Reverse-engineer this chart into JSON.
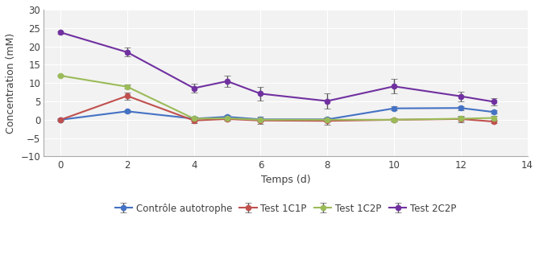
{
  "x": [
    0,
    2,
    4,
    5,
    6,
    8,
    10,
    12,
    13
  ],
  "controle_autotrophe": [
    0.0,
    2.3,
    0.3,
    0.8,
    0.1,
    0.1,
    3.1,
    3.2,
    2.1
  ],
  "controle_autotrophe_err": [
    0.2,
    0.4,
    0.5,
    0.4,
    0.3,
    0.5,
    0.5,
    0.5,
    0.4
  ],
  "test_1c1p": [
    0.0,
    6.5,
    -0.2,
    0.2,
    -0.2,
    -0.3,
    0.0,
    0.2,
    -0.5
  ],
  "test_1c1p_err": [
    0.3,
    1.0,
    0.8,
    0.5,
    1.0,
    1.0,
    0.5,
    0.8,
    0.5
  ],
  "test_1c2p": [
    12.0,
    9.0,
    0.3,
    0.4,
    0.0,
    0.0,
    0.0,
    0.3,
    0.5
  ],
  "test_1c2p_err": [
    0.3,
    0.6,
    0.5,
    0.5,
    0.5,
    0.5,
    0.5,
    0.5,
    0.5
  ],
  "test_2c2p": [
    23.8,
    18.4,
    8.6,
    10.5,
    7.1,
    5.1,
    9.1,
    6.4,
    4.9
  ],
  "test_2c2p_err": [
    0.3,
    1.2,
    1.2,
    1.5,
    1.8,
    2.0,
    2.0,
    1.3,
    1.0
  ],
  "colors": {
    "controle_autotrophe": "#4472C4",
    "test_1c1p": "#C0504D",
    "test_1c2p": "#9BBB59",
    "test_2c2p": "#7030A0"
  },
  "legend_labels": [
    "Contrôle autotrophe",
    "Test 1C1P",
    "Test 1C2P",
    "Test 2C2P"
  ],
  "xlabel": "Temps (d)",
  "ylabel": "Concentration (mM)",
  "xlim": [
    -0.5,
    14
  ],
  "ylim": [
    -10,
    30
  ],
  "yticks": [
    -10,
    -5,
    0,
    5,
    10,
    15,
    20,
    25,
    30
  ],
  "xticks": [
    0,
    2,
    4,
    6,
    8,
    10,
    12,
    14
  ],
  "plot_bg_color": "#f2f2f2",
  "fig_bg_color": "#ffffff",
  "grid_color": "#ffffff",
  "ecolor": "#595959"
}
